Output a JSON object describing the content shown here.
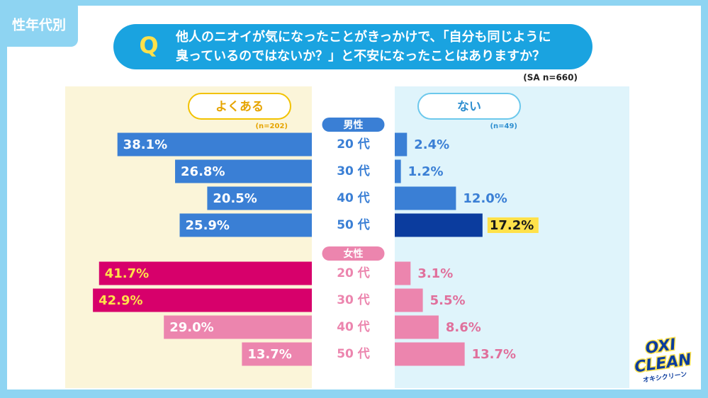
{
  "chart_data": {
    "type": "butterfly",
    "tag": "性年代別",
    "q_mark": "Q",
    "title_lines": [
      "他人のニオイが気になったことがきっかけで、「自分も同じように",
      "臭っているのではないか？」と不安になったことはありますか？"
    ],
    "sample": "(SA n=660)",
    "categories": [
      "20 代",
      "30 代",
      "40 代",
      "50 代"
    ],
    "groups": [
      {
        "name": "男性",
        "color": "#3a7fd5"
      },
      {
        "name": "女性",
        "color": "#ec85ae"
      }
    ],
    "xlim": [
      0,
      45
    ],
    "series": [
      {
        "name": "よくある",
        "note": "(n=202)",
        "side": "left",
        "border": "#f2c200",
        "text_color": "#e6a400",
        "values": [
          [
            38.1,
            26.8,
            20.5,
            25.9
          ],
          [
            41.7,
            42.9,
            29.0,
            13.7
          ]
        ],
        "value_labels": [
          [
            "38.1%",
            "26.8%",
            "20.5%",
            "25.9%"
          ],
          [
            "41.7%",
            "42.9%",
            "29.0%",
            "13.7%"
          ]
        ],
        "colors": [
          [
            "#3a7fd5",
            "#3a7fd5",
            "#3a7fd5",
            "#3a7fd5"
          ],
          [
            "#d7006b",
            "#d7006b",
            "#ec85ae",
            "#ec85ae"
          ]
        ],
        "label_colors": [
          [
            "#ffffff",
            "#ffffff",
            "#ffffff",
            "#ffffff"
          ],
          [
            "#ffe14a",
            "#ffe14a",
            "#ffffff",
            "#ffffff"
          ]
        ]
      },
      {
        "name": "ない",
        "note": "(n=49)",
        "side": "right",
        "border": "#6cc8ec",
        "text_color": "#2f8fd0",
        "values": [
          [
            2.4,
            1.2,
            12.0,
            17.2
          ],
          [
            3.1,
            5.5,
            8.6,
            13.7
          ]
        ],
        "value_labels": [
          [
            "2.4%",
            "1.2%",
            "12.0%",
            "17.2%"
          ],
          [
            "3.1%",
            "5.5%",
            "8.6%",
            "13.7%"
          ]
        ],
        "colors": [
          [
            "#3a7fd5",
            "#3a7fd5",
            "#3a7fd5",
            "#0b3c9e"
          ],
          [
            "#ec85ae",
            "#ec85ae",
            "#ec85ae",
            "#ec85ae"
          ]
        ],
        "label_colors": [
          [
            "#3a7fd5",
            "#3a7fd5",
            "#3a7fd5",
            "#1a1a1a"
          ],
          [
            "#e0709c",
            "#e0709c",
            "#e0709c",
            "#e0709c"
          ]
        ],
        "highlight": [
          [
            false,
            false,
            false,
            true
          ],
          [
            false,
            false,
            false,
            false
          ]
        ]
      }
    ]
  },
  "logo": {
    "lines": [
      "OXI",
      "CLEAN"
    ],
    "sub": "オキシクリーン"
  }
}
